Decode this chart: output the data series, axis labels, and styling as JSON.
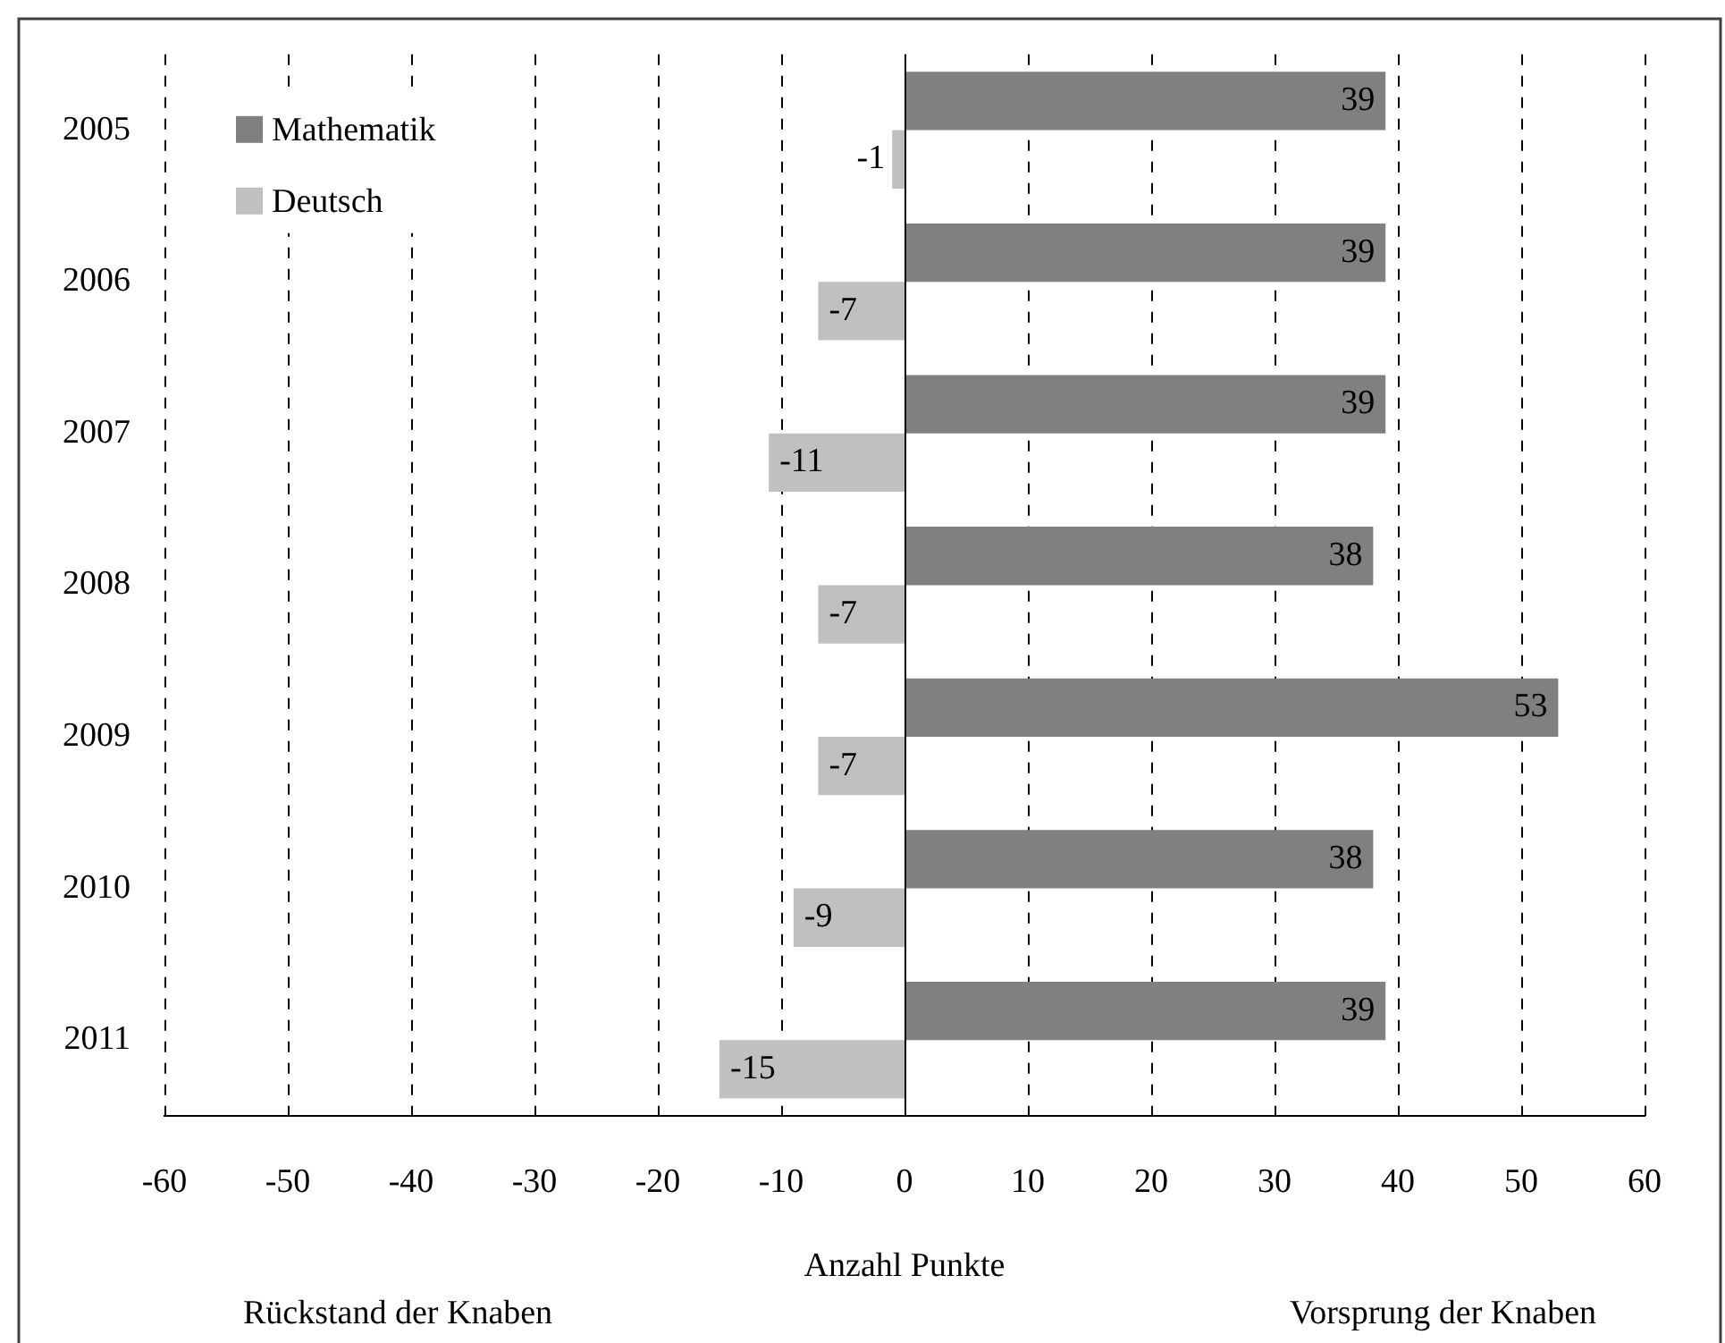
{
  "chart_data": {
    "type": "bar",
    "orientation": "horizontal",
    "categories": [
      "2005",
      "2006",
      "2007",
      "2008",
      "2009",
      "2010",
      "2011"
    ],
    "series": [
      {
        "name": "Mathematik",
        "color": "#808080",
        "values": [
          39,
          39,
          39,
          38,
          53,
          38,
          39
        ]
      },
      {
        "name": "Deutsch",
        "color": "#c0c0c0",
        "values": [
          -1,
          -7,
          -11,
          -7,
          -7,
          -9,
          -15
        ]
      }
    ],
    "xlabel": "Anzahl Punkte",
    "xlim": [
      -60,
      60
    ],
    "xticks": [
      -60,
      -50,
      -40,
      -30,
      -20,
      -10,
      0,
      10,
      20,
      30,
      40,
      50,
      60
    ],
    "grid": "x",
    "legend": "top left",
    "data_labels": true,
    "annotations": [
      "Rückstand der Knaben",
      "Vorsprung der Knaben"
    ]
  }
}
